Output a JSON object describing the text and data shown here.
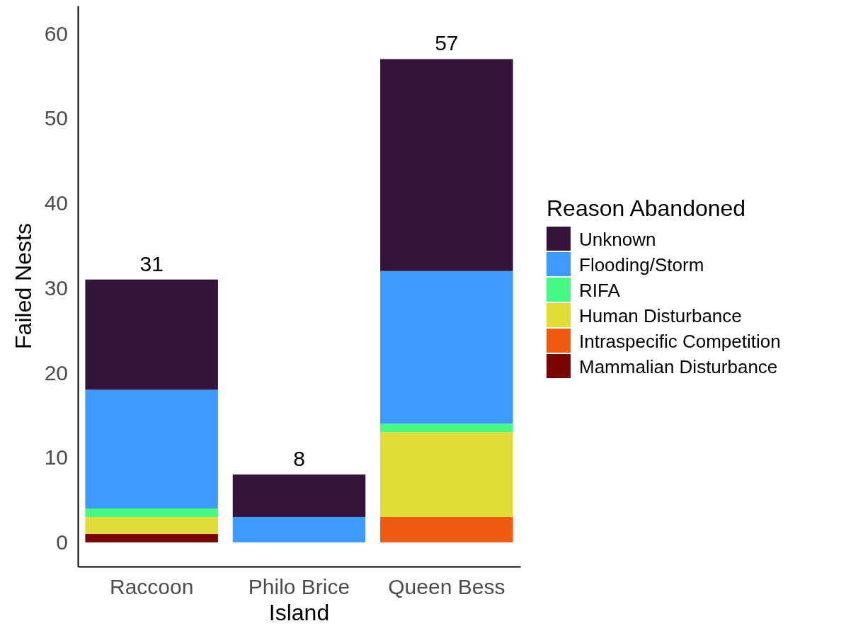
{
  "chart_data": {
    "type": "bar",
    "stacked": true,
    "xlabel": "Island",
    "ylabel": "Failed Nests",
    "legend_title": "Reason Abandoned",
    "legend": "right",
    "categories": [
      "Raccoon",
      "Philo Brice",
      "Queen Bess"
    ],
    "series": [
      {
        "name": "Mammalian Disturbance",
        "color": "#7a0403",
        "values": [
          1,
          0,
          0
        ]
      },
      {
        "name": "Intraspecific Competition",
        "color": "#f05b12",
        "values": [
          0,
          0,
          3
        ]
      },
      {
        "name": "Human Disturbance",
        "color": "#e1dd37",
        "values": [
          2,
          0,
          10
        ]
      },
      {
        "name": "RIFA",
        "color": "#46f884",
        "values": [
          1,
          0,
          1
        ]
      },
      {
        "name": "Flooding/Storm",
        "color": "#3e9bfe",
        "values": [
          14,
          3,
          18
        ]
      },
      {
        "name": "Unknown",
        "color": "#341539",
        "values": [
          13,
          5,
          25
        ]
      }
    ],
    "totals": [
      "31",
      "8",
      "57"
    ],
    "ylim": [
      -2.85,
      63.3
    ],
    "yticks": [
      0,
      10,
      20,
      30,
      40,
      50,
      60
    ]
  }
}
